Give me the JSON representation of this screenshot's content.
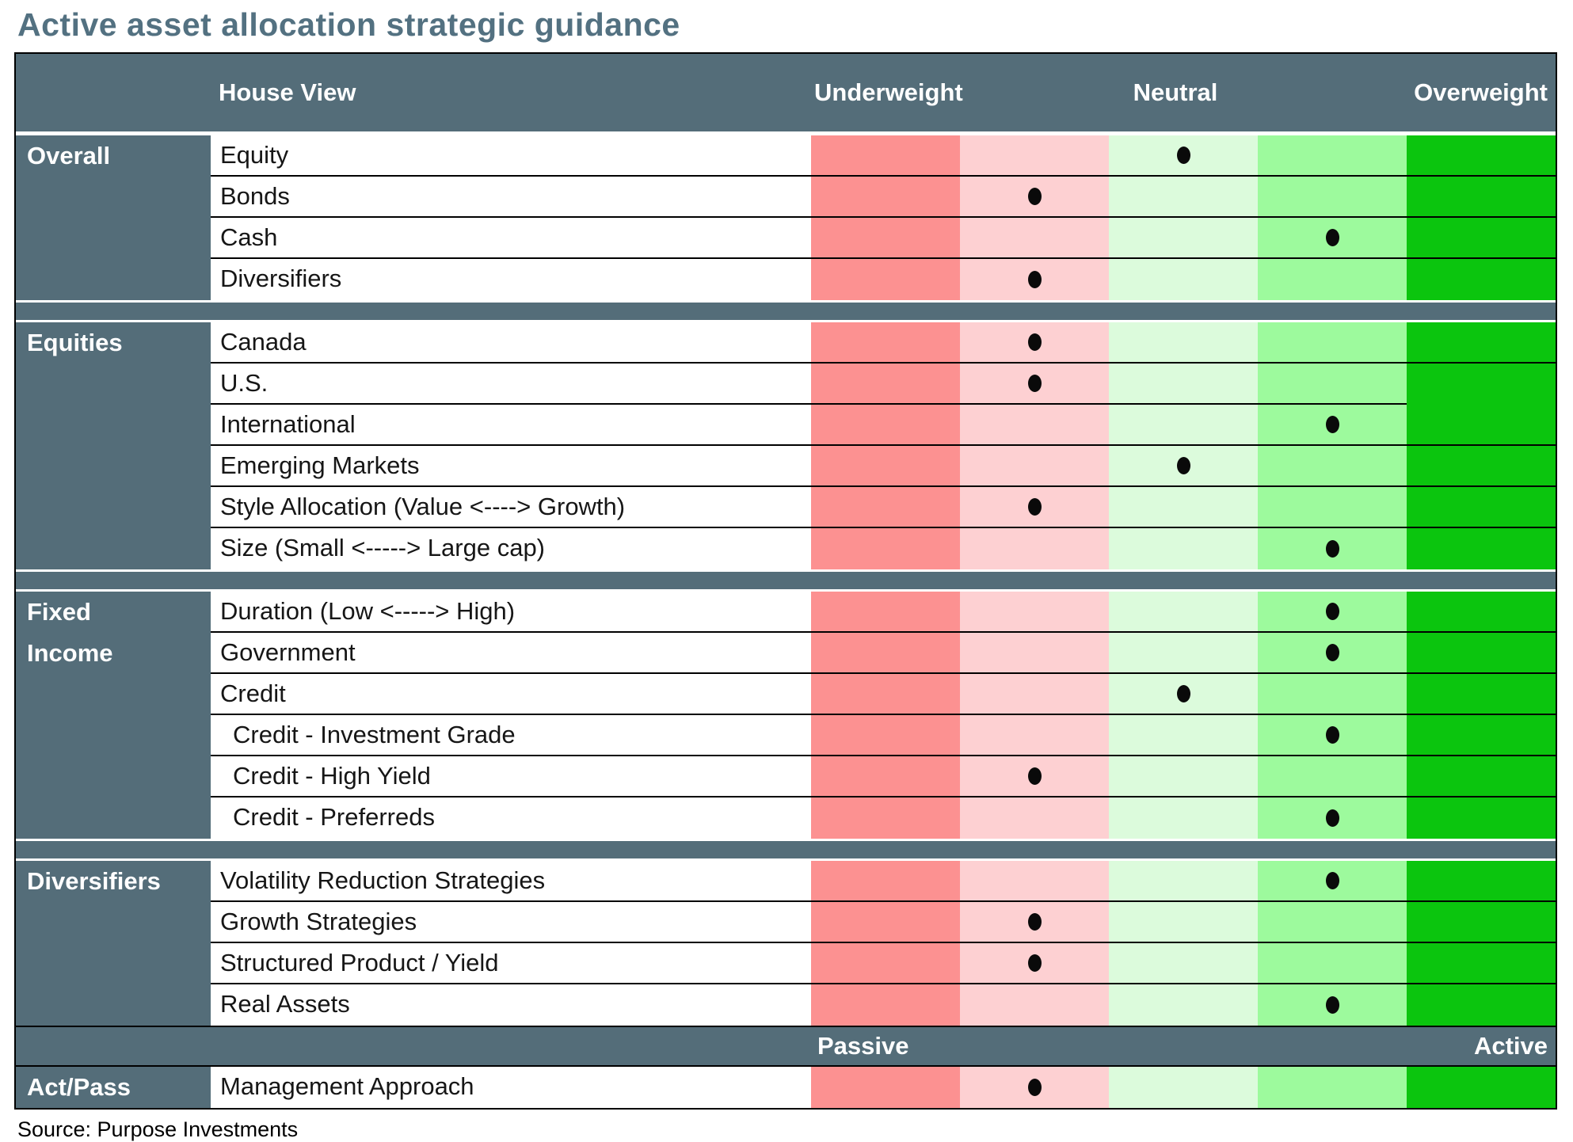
{
  "title": "Active asset allocation strategic guidance",
  "source_note": "Source: Purpose Investments",
  "header": {
    "house_view": "House View",
    "underweight": "Underweight",
    "neutral": "Neutral",
    "overweight": "Overweight"
  },
  "act_pass_scale": {
    "passive": "Passive",
    "active": "Active"
  },
  "scale": {
    "levels": [
      "strong-underweight",
      "underweight",
      "neutral",
      "overweight",
      "strong-overweight"
    ],
    "colors": [
      "#fc9191",
      "#fdd0d2",
      "#dcfbdc",
      "#9dfa9d",
      "#0bc50e"
    ]
  },
  "colors": {
    "slate": "#546d79",
    "title_text": "#537181",
    "dot": "#0a0a0a",
    "row_border": "#000000"
  },
  "chart_data": {
    "type": "heatmap",
    "title": "Active asset allocation strategic guidance",
    "x_scale": [
      "Underweight",
      "Neutral",
      "Overweight"
    ],
    "x_levels": 5,
    "legend_position": "top",
    "notes": "Dot marks house view on a 5-step underweight-to-overweight scale (1 = far underweight, 5 = far overweight). Management Approach row uses a Passive-to-Active scale.",
    "series": [
      {
        "group": "Overall",
        "name": "Equity",
        "value": 3
      },
      {
        "group": "Overall",
        "name": "Bonds",
        "value": 2
      },
      {
        "group": "Overall",
        "name": "Cash",
        "value": 4
      },
      {
        "group": "Overall",
        "name": "Diversifiers",
        "value": 2
      },
      {
        "group": "Equities",
        "name": "Canada",
        "value": 2
      },
      {
        "group": "Equities",
        "name": "U.S.",
        "value": 2
      },
      {
        "group": "Equities",
        "name": "International",
        "value": 4
      },
      {
        "group": "Equities",
        "name": "Emerging Markets",
        "value": 3
      },
      {
        "group": "Equities",
        "name": "Style Allocation (Value <----> Growth)",
        "value": 2
      },
      {
        "group": "Equities",
        "name": "Size (Small <----->  Large cap)",
        "value": 4
      },
      {
        "group": "Fixed Income",
        "name": "Duration (Low <-----> High)",
        "value": 4
      },
      {
        "group": "Fixed Income",
        "name": "Government",
        "value": 4
      },
      {
        "group": "Fixed Income",
        "name": "Credit",
        "value": 3
      },
      {
        "group": "Fixed Income",
        "name": "Credit - Investment Grade",
        "value": 4
      },
      {
        "group": "Fixed Income",
        "name": "Credit - High Yield",
        "value": 2
      },
      {
        "group": "Fixed Income",
        "name": "Credit - Preferreds",
        "value": 4
      },
      {
        "group": "Diversifiers",
        "name": "Volatility Reduction Strategies",
        "value": 4
      },
      {
        "group": "Diversifiers",
        "name": "Growth Strategies",
        "value": 2
      },
      {
        "group": "Diversifiers",
        "name": "Structured Product / Yield",
        "value": 2
      },
      {
        "group": "Diversifiers",
        "name": "Real Assets",
        "value": 4
      },
      {
        "group": "Act/Pass",
        "name": "Management Approach",
        "value": 2
      }
    ]
  },
  "sections": [
    {
      "label_lines": [
        "Overall"
      ],
      "rows": [
        {
          "label": "Equity",
          "dot": 3
        },
        {
          "label": "Bonds",
          "dot": 2
        },
        {
          "label": "Cash",
          "dot": 4
        },
        {
          "label": "Diversifiers",
          "dot": 2
        }
      ]
    },
    {
      "label_lines": [
        "Equities"
      ],
      "rows": [
        {
          "label": "Canada",
          "dot": 2
        },
        {
          "label": "U.S.",
          "dot": 2,
          "merge_overweight_down": true
        },
        {
          "label": "International",
          "dot": 4
        },
        {
          "label": "Emerging Markets",
          "dot": 3
        },
        {
          "label": "Style Allocation (Value <----> Growth)",
          "dot": 2
        },
        {
          "label": "Size (Small <----->  Large cap)",
          "dot": 4
        }
      ]
    },
    {
      "label_lines": [
        "Fixed",
        "Income"
      ],
      "rows": [
        {
          "label": "Duration (Low <-----> High)",
          "dot": 4
        },
        {
          "label": "Government",
          "dot": 4
        },
        {
          "label": "Credit",
          "dot": 3
        },
        {
          "label": "Credit - Investment Grade",
          "dot": 4,
          "indent": true
        },
        {
          "label": "Credit - High Yield",
          "dot": 2,
          "indent": true
        },
        {
          "label": "Credit - Preferreds",
          "dot": 4,
          "indent": true
        }
      ]
    },
    {
      "label_lines": [
        "Diversifiers"
      ],
      "rows": [
        {
          "label": "Volatility Reduction Strategies",
          "dot": 4
        },
        {
          "label": "Growth Strategies",
          "dot": 2
        },
        {
          "label": "Structured Product / Yield",
          "dot": 2
        },
        {
          "label": "Real Assets",
          "dot": 4
        }
      ]
    },
    {
      "label_lines": [
        "Act/Pass"
      ],
      "scale_band_before": true,
      "rows": [
        {
          "label": "Management Approach",
          "dot": 2
        }
      ]
    }
  ]
}
